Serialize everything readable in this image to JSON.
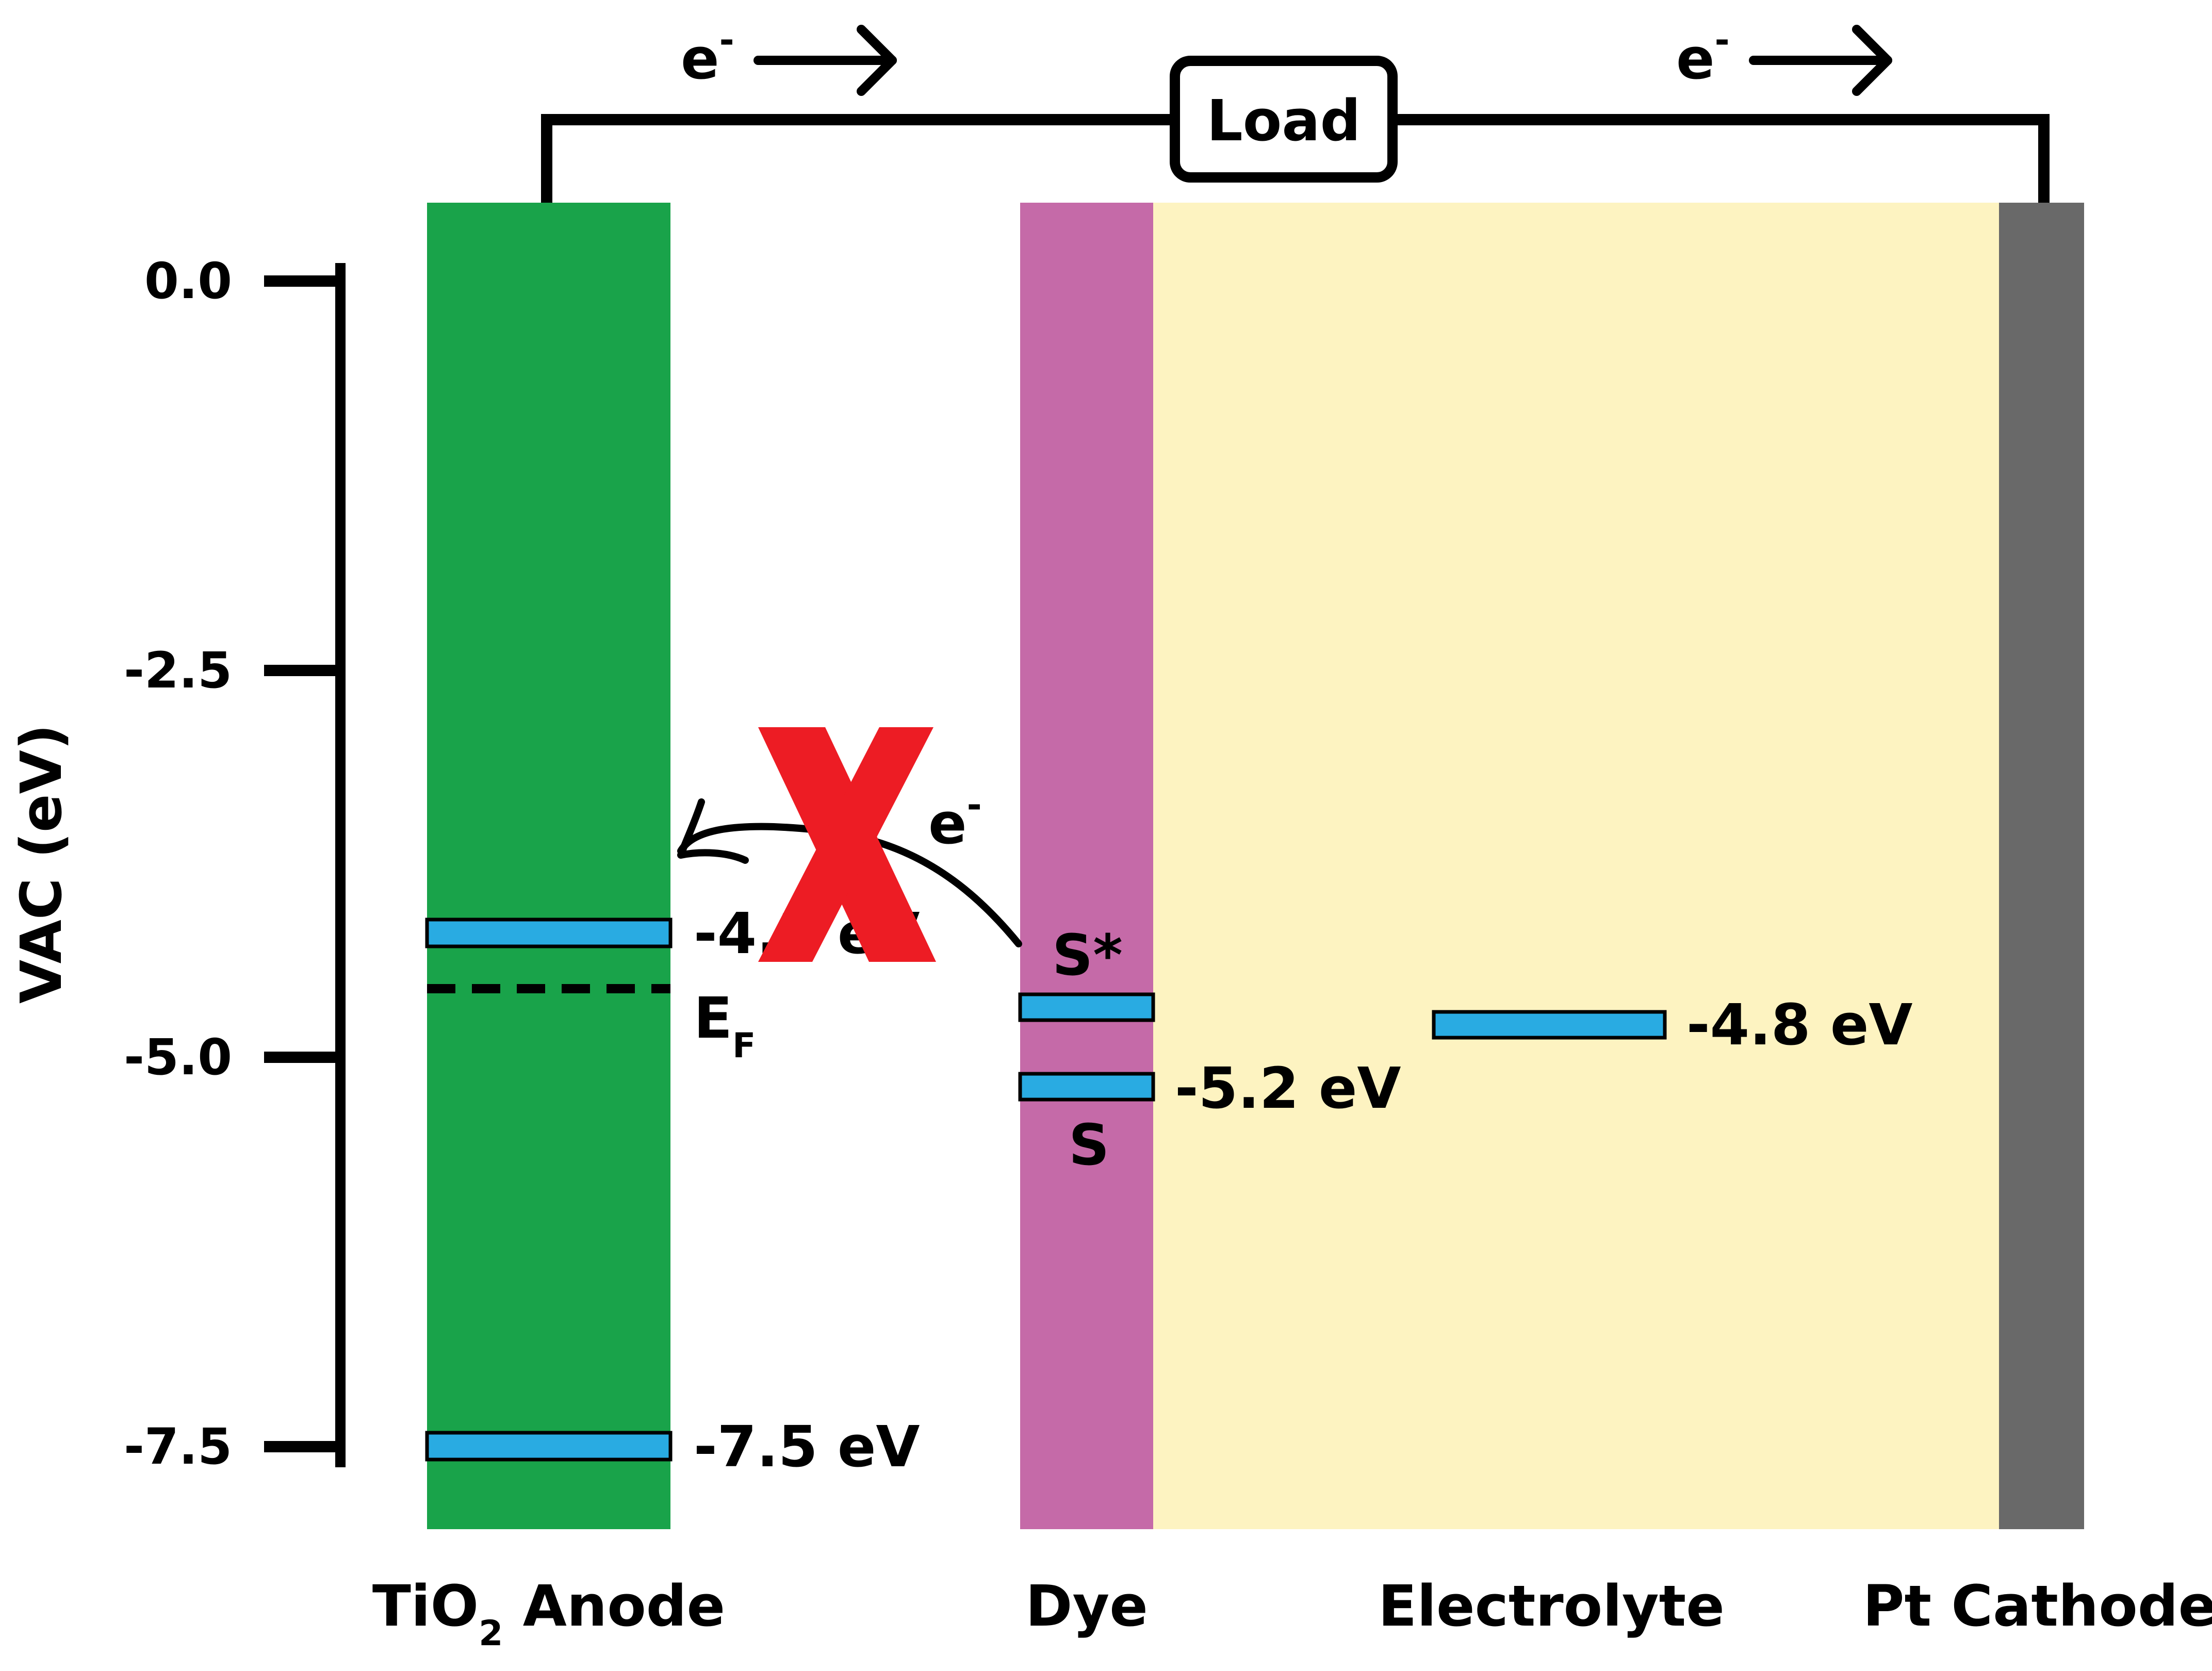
{
  "axis": {
    "label": "VAC (eV)",
    "ticks": [
      "0.0",
      "-2.5",
      "-5.0",
      "-7.5"
    ]
  },
  "circuit": {
    "load_label": "Load",
    "electron_left": "e",
    "electron_right": "e",
    "electron_superscript": "-"
  },
  "regions": {
    "anode": {
      "label_main": "TiO",
      "label_sub": "2",
      "label_rest": " Anode",
      "color": "#19a34a"
    },
    "dye": {
      "label": "Dye",
      "color": "#c56aa8"
    },
    "electrolyte": {
      "label": "Electrolyte",
      "color": "#fdf3c1"
    },
    "cathode": {
      "label": "Pt Cathode",
      "color": "#696969"
    }
  },
  "levels": {
    "anode_cb": "-4.2 eV",
    "anode_vb": "-7.5 eV",
    "fermi_main": "E",
    "fermi_sub": "F",
    "dye_excited": "S*",
    "dye_ground": "S",
    "dye_value": "-5.2 eV",
    "electrolyte_value": "-4.8 eV",
    "level_color": "#29abe2"
  },
  "transfer": {
    "electron": "e",
    "electron_superscript": "-",
    "blocked_mark": "X",
    "blocked_color": "#ed1c24"
  }
}
